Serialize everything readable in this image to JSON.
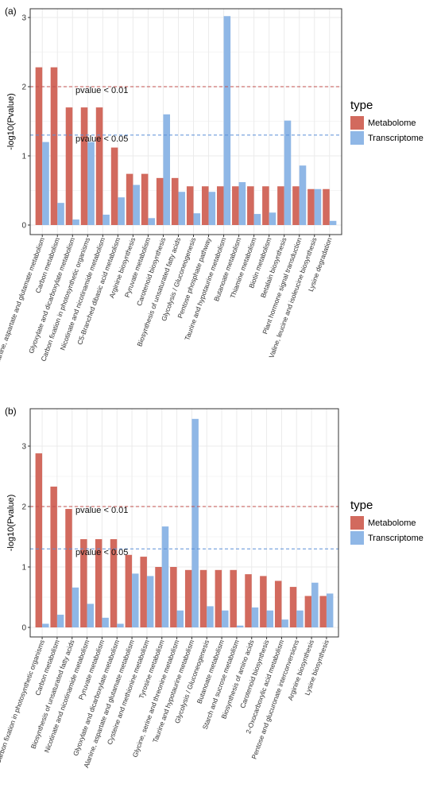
{
  "chart_data": [
    {
      "panel_label": "(a)",
      "type": "bar",
      "ylabel": "-log10(Pvalue)",
      "xlabel": "",
      "ylim": [
        0,
        3.1
      ],
      "yticks": [
        "0",
        "1",
        "2",
        "3"
      ],
      "grid": true,
      "legend": {
        "title": "type",
        "position": "right"
      },
      "thresholds": [
        {
          "label": "pvalue < 0.01",
          "value": 2.0,
          "color": "#c0504d"
        },
        {
          "label": "pvalue < 0.05",
          "value": 1.3,
          "color": "#5a8fd8"
        }
      ],
      "categories": [
        "Alanine, aspartate and glutamate metabolism",
        "Carbon metabolism",
        "Glyoxylate and dicarboxylate metabolism",
        "Carbon fixation in photosynthetic organisms",
        "Nicotinate and nicotinamide metabolism",
        "C5-Branched dibasic acid metabolism",
        "Arginine biosynthesis",
        "Pyruvate metabolism",
        "Carotenoid biosynthesis",
        "Biosynthesis of unsaturated fatty acids",
        "Glycolysis / Gluconeogenesis",
        "Pentose phosphate pathway",
        "Taurine and hypotaurine metabolism",
        "Butanoate metabolism",
        "Thiamine metabolism",
        "Biotin metabolism",
        "Betalain biosynthesis",
        "Plant hormone signal transduction",
        "Valine, leucine and isoleucine biosynthesis",
        "Lysine degradation"
      ],
      "series": [
        {
          "name": "Metabolome",
          "color": "#d26a5e",
          "values": [
            2.28,
            2.28,
            1.7,
            1.7,
            1.7,
            1.12,
            0.74,
            0.74,
            0.68,
            0.68,
            0.56,
            0.56,
            0.56,
            0.56,
            0.56,
            0.56,
            0.56,
            0.56,
            0.52,
            0.52
          ]
        },
        {
          "name": "Transcriptome",
          "color": "#8fb7e6",
          "values": [
            1.2,
            0.32,
            0.08,
            1.2,
            0.15,
            0.4,
            0.58,
            0.1,
            1.6,
            0.48,
            0.17,
            0.48,
            3.02,
            0.62,
            0.16,
            0.18,
            1.51,
            0.86,
            0.52,
            0.06
          ]
        }
      ]
    },
    {
      "panel_label": "(b)",
      "type": "bar",
      "ylabel": "-log10(Pvalue)",
      "xlabel": "",
      "ylim": [
        0,
        3.5
      ],
      "yticks": [
        "0",
        "1",
        "2",
        "3"
      ],
      "grid": true,
      "legend": {
        "title": "type",
        "position": "right"
      },
      "thresholds": [
        {
          "label": "pvalue < 0.01",
          "value": 2.0,
          "color": "#c0504d"
        },
        {
          "label": "pvalue < 0.05",
          "value": 1.3,
          "color": "#5a8fd8"
        }
      ],
      "categories": [
        "Carbon fixation in photosynthetic organisms",
        "Carbon metabolism",
        "Biosynthesis of unsaturated fatty acids",
        "Nicotinate and nicotinamide metabolism",
        "Pyruvate metabolism",
        "Glyoxylate and dicarboxylate metabolism",
        "Alanine, aspartate and glutamate metabolism",
        "Cysteine and methionine metabolism",
        "Tyrosine metabolism",
        "Glycine, serine and threonine metabolism",
        "Taurine and hypotaurine metabolism",
        "Glycolysis / Gluconeogenesis",
        "Butanoate metabolism",
        "Starch and sucrose metabolism",
        "Biosynthesis of amino acids",
        "Carotenoid biosynthesis",
        "2-Oxocarboxylic acid metabolism",
        "Pentose and glucuronate interconversions",
        "Arginine biosynthesis",
        "Lysine biosynthesis"
      ],
      "series": [
        {
          "name": "Metabolome",
          "color": "#d26a5e",
          "values": [
            2.88,
            2.33,
            1.96,
            1.46,
            1.46,
            1.46,
            1.2,
            1.17,
            1.0,
            1.0,
            0.95,
            0.95,
            0.95,
            0.95,
            0.88,
            0.85,
            0.77,
            0.67,
            0.52,
            0.52
          ]
        },
        {
          "name": "Transcriptome",
          "color": "#8fb7e6",
          "values": [
            0.06,
            0.21,
            0.66,
            0.39,
            0.16,
            0.06,
            0.89,
            0.85,
            1.67,
            0.28,
            3.45,
            0.35,
            0.28,
            0.03,
            0.33,
            0.28,
            0.13,
            0.28,
            0.74,
            0.56
          ]
        }
      ]
    }
  ]
}
